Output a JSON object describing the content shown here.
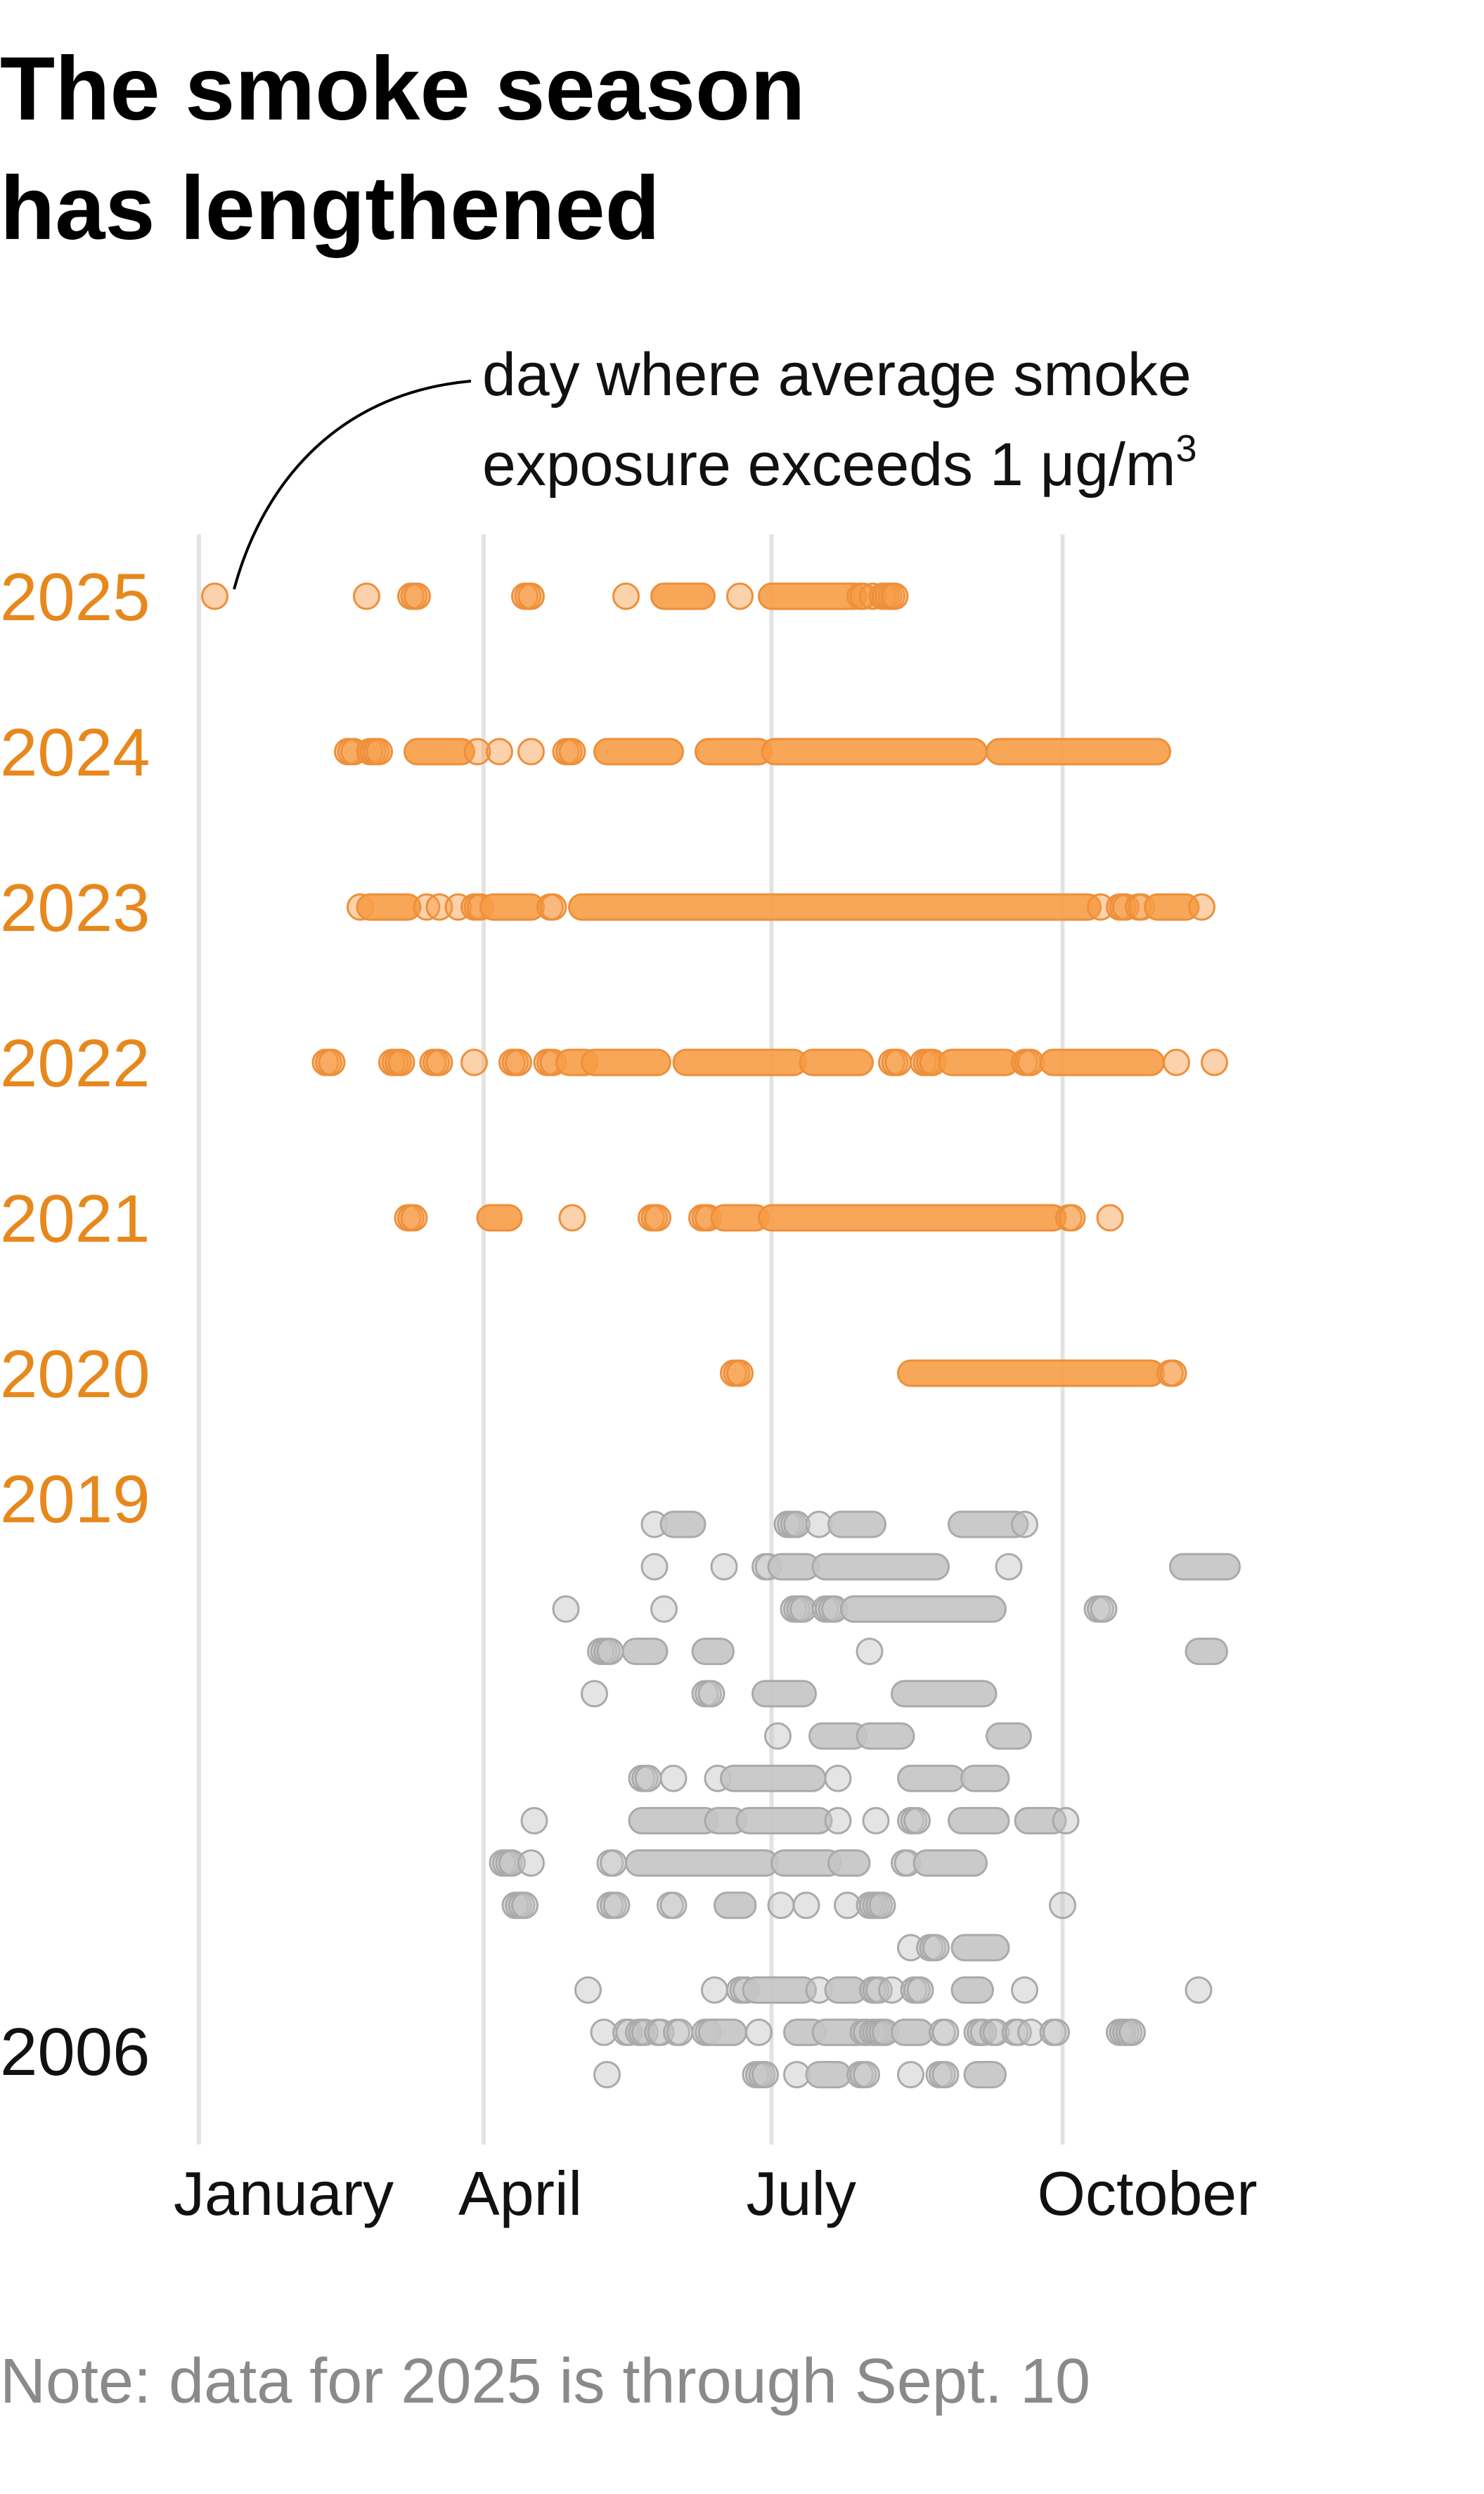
{
  "title": {
    "line1": "The smoke season",
    "line2": "has lengthened"
  },
  "annotation": {
    "line1": "day where average smoke",
    "line2_prefix": "exposure exceeds 1 μg/m",
    "line2_sup": "3"
  },
  "note": "Note: data for 2025 is through Sept. 10",
  "chart_data": {
    "type": "scatter",
    "title": "The smoke season has lengthened",
    "xlabel": "",
    "ylabel": "",
    "x_axis_unit": "day of year",
    "xlim": [
      1,
      366
    ],
    "x_ticks": [
      {
        "label": "January",
        "day": 1
      },
      {
        "label": "April",
        "day": 91
      },
      {
        "label": "July",
        "day": 182
      },
      {
        "label": "October",
        "day": 274
      }
    ],
    "grid": true,
    "colors": {
      "recent": "#f79c45",
      "recent_stroke": "#ee8f3a",
      "recent_label": "#e7881d",
      "older": "#c4c4c4",
      "older_stroke": "#aaaaaa",
      "gridline": "#e3e3e3"
    },
    "highlighted_years": [
      {
        "year": "2025",
        "segments": [
          [
            6,
            6
          ],
          [
            54,
            54
          ],
          [
            68,
            70
          ],
          [
            104,
            106
          ],
          [
            136,
            136
          ],
          [
            148,
            160
          ],
          [
            172,
            172
          ],
          [
            182,
            208
          ],
          [
            210,
            211
          ],
          [
            214,
            214
          ],
          [
            217,
            221
          ]
        ]
      },
      {
        "year": "2024",
        "segments": [
          [
            48,
            50
          ],
          [
            55,
            58
          ],
          [
            70,
            84
          ],
          [
            89,
            89
          ],
          [
            96,
            96
          ],
          [
            106,
            106
          ],
          [
            117,
            119
          ],
          [
            130,
            150
          ],
          [
            162,
            178
          ],
          [
            183,
            246
          ],
          [
            254,
            304
          ]
        ]
      },
      {
        "year": "2023",
        "segments": [
          [
            52,
            52
          ],
          [
            55,
            67
          ],
          [
            73,
            73
          ],
          [
            77,
            77
          ],
          [
            83,
            83
          ],
          [
            88,
            90
          ],
          [
            94,
            106
          ],
          [
            112,
            113
          ],
          [
            122,
            282
          ],
          [
            286,
            286
          ],
          [
            292,
            294
          ],
          [
            298,
            299
          ],
          [
            304,
            313
          ],
          [
            318,
            318
          ]
        ]
      },
      {
        "year": "2022",
        "segments": [
          [
            41,
            43
          ],
          [
            62,
            65
          ],
          [
            75,
            77
          ],
          [
            88,
            88
          ],
          [
            100,
            102
          ],
          [
            111,
            113
          ],
          [
            118,
            123
          ],
          [
            126,
            146
          ],
          [
            155,
            189
          ],
          [
            195,
            210
          ],
          [
            220,
            222
          ],
          [
            230,
            233
          ],
          [
            239,
            256
          ],
          [
            262,
            264
          ],
          [
            271,
            302
          ],
          [
            310,
            310
          ],
          [
            322,
            322
          ]
        ]
      },
      {
        "year": "2021",
        "segments": [
          [
            67,
            69
          ],
          [
            93,
            99
          ],
          [
            119,
            119
          ],
          [
            144,
            146
          ],
          [
            160,
            162
          ],
          [
            167,
            177
          ],
          [
            182,
            271
          ],
          [
            276,
            277
          ],
          [
            289,
            289
          ]
        ]
      },
      {
        "year": "2020",
        "segments": [
          [
            170,
            172
          ],
          [
            226,
            302
          ],
          [
            308,
            309
          ]
        ]
      }
    ],
    "axis_year_labels": {
      "top": "2019",
      "bottom": "2006"
    },
    "older_years": [
      {
        "year": "2019",
        "segments": [
          [
            145,
            145
          ],
          [
            151,
            157
          ],
          [
            187,
            190
          ],
          [
            197,
            197
          ],
          [
            204,
            214
          ],
          [
            242,
            259
          ],
          [
            262,
            262
          ]
        ]
      },
      {
        "year": "2018",
        "segments": [
          [
            145,
            145
          ],
          [
            167,
            167
          ],
          [
            180,
            181
          ],
          [
            185,
            193
          ],
          [
            199,
            234
          ],
          [
            257,
            257
          ],
          [
            312,
            326
          ]
        ]
      },
      {
        "year": "2017",
        "segments": [
          [
            117,
            117
          ],
          [
            148,
            148
          ],
          [
            189,
            192
          ],
          [
            199,
            202
          ],
          [
            208,
            252
          ],
          [
            285,
            287
          ]
        ]
      },
      {
        "year": "2016",
        "segments": [
          [
            128,
            131
          ],
          [
            139,
            145
          ],
          [
            161,
            166
          ],
          [
            213,
            213
          ],
          [
            317,
            322
          ]
        ]
      },
      {
        "year": "2015",
        "segments": [
          [
            126,
            126
          ],
          [
            161,
            163
          ],
          [
            180,
            192
          ],
          [
            224,
            249
          ]
        ]
      },
      {
        "year": "2014",
        "segments": [
          [
            184,
            184
          ],
          [
            198,
            208
          ],
          [
            213,
            223
          ],
          [
            254,
            260
          ]
        ]
      },
      {
        "year": "2013",
        "segments": [
          [
            141,
            143
          ],
          [
            151,
            151
          ],
          [
            165,
            165
          ],
          [
            170,
            195
          ],
          [
            203,
            203
          ],
          [
            226,
            239
          ],
          [
            246,
            253
          ]
        ]
      },
      {
        "year": "2012",
        "segments": [
          [
            107,
            107
          ],
          [
            141,
            161
          ],
          [
            165,
            170
          ],
          [
            175,
            197
          ],
          [
            203,
            203
          ],
          [
            215,
            215
          ],
          [
            226,
            228
          ],
          [
            242,
            253
          ],
          [
            263,
            271
          ],
          [
            275,
            275
          ]
        ]
      },
      {
        "year": "2011",
        "segments": [
          [
            97,
            100
          ],
          [
            106,
            106
          ],
          [
            131,
            132
          ],
          [
            140,
            180
          ],
          [
            186,
            200
          ],
          [
            204,
            209
          ],
          [
            224,
            225
          ],
          [
            231,
            246
          ]
        ]
      },
      {
        "year": "2010",
        "segments": [
          [
            101,
            104
          ],
          [
            131,
            133
          ],
          [
            150,
            151
          ],
          [
            168,
            173
          ],
          [
            185,
            185
          ],
          [
            193,
            193
          ],
          [
            206,
            206
          ],
          [
            213,
            217
          ],
          [
            274,
            274
          ]
        ]
      },
      {
        "year": "2009",
        "segments": [
          [
            226,
            226
          ],
          [
            232,
            234
          ],
          [
            243,
            253
          ]
        ]
      },
      {
        "year": "2008",
        "segments": [
          [
            124,
            124
          ],
          [
            164,
            164
          ],
          [
            172,
            174
          ],
          [
            177,
            192
          ],
          [
            197,
            197
          ],
          [
            203,
            208
          ],
          [
            214,
            216
          ],
          [
            220,
            220
          ],
          [
            227,
            229
          ],
          [
            243,
            248
          ],
          [
            262,
            262
          ],
          [
            317,
            317
          ]
        ]
      },
      {
        "year": "2007",
        "segments": [
          [
            129,
            129
          ],
          [
            136,
            137
          ],
          [
            140,
            142
          ],
          [
            146,
            147
          ],
          [
            152,
            153
          ],
          [
            161,
            162
          ],
          [
            163,
            170
          ],
          [
            178,
            178
          ],
          [
            190,
            195
          ],
          [
            199,
            209
          ],
          [
            211,
            212
          ],
          [
            214,
            218
          ],
          [
            224,
            229
          ],
          [
            236,
            237
          ],
          [
            247,
            249
          ],
          [
            252,
            253
          ],
          [
            259,
            260
          ],
          [
            264,
            264
          ],
          [
            271,
            272
          ],
          [
            292,
            296
          ]
        ]
      },
      {
        "year": "2006",
        "segments": [
          [
            130,
            130
          ],
          [
            177,
            180
          ],
          [
            190,
            190
          ],
          [
            197,
            203
          ],
          [
            210,
            212
          ],
          [
            226,
            226
          ],
          [
            235,
            237
          ],
          [
            247,
            252
          ]
        ]
      }
    ]
  }
}
